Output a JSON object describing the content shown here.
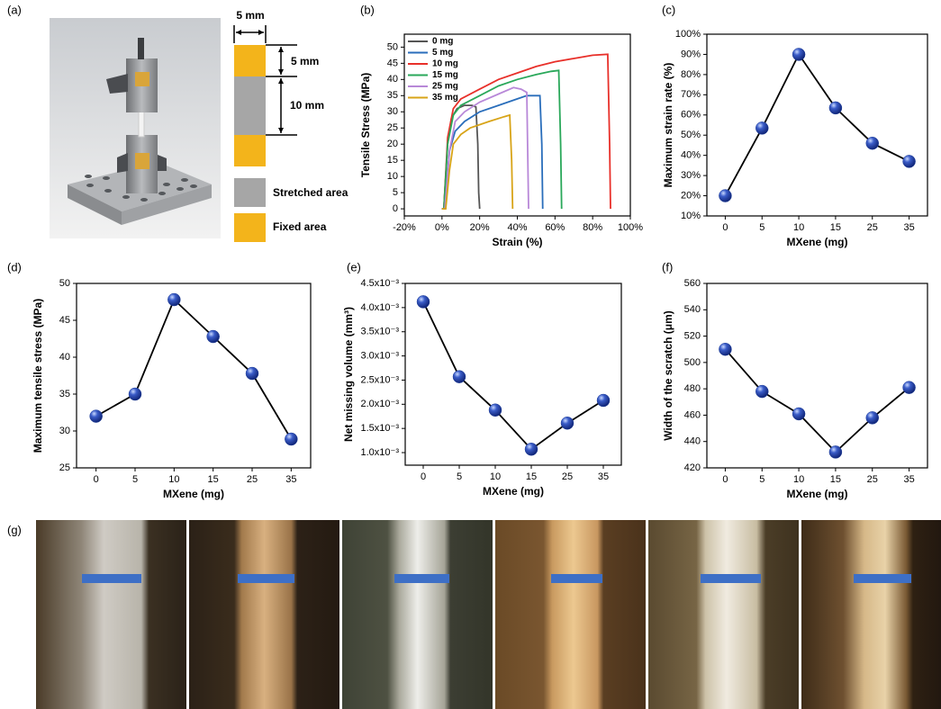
{
  "panel_a": {
    "label": "(a)",
    "top_width": "5 mm",
    "fixed_length": "5 mm",
    "stretched_length": "10 mm",
    "legend": [
      "Stretched area",
      "Fixed area"
    ]
  },
  "panel_g": {
    "label": "(g)"
  },
  "chart_data": [
    {
      "type": "line",
      "label": "(b)",
      "x_label": "Strain (%)",
      "y_label": "Tensile Stress (MPa)",
      "xlim": [
        -20,
        100
      ],
      "xticks": [
        {
          "value": -20,
          "label": "-20%"
        },
        {
          "value": 0,
          "label": "0%"
        },
        {
          "value": 20,
          "label": "20%"
        },
        {
          "value": 40,
          "label": "40%"
        },
        {
          "value": 60,
          "label": "60%"
        },
        {
          "value": 80,
          "label": "80%"
        },
        {
          "value": 100,
          "label": "100%"
        }
      ],
      "ylim": [
        -2.2,
        54
      ],
      "yticks": [
        0,
        5,
        10,
        15,
        20,
        25,
        30,
        35,
        40,
        45,
        50
      ],
      "legend": "upper left",
      "series": [
        {
          "name": "0 mg",
          "color": "#555555",
          "x": [
            0,
            1,
            3,
            5,
            8,
            12,
            16,
            18,
            19,
            19.5,
            20
          ],
          "values": [
            0,
            0,
            20,
            28,
            31,
            32,
            32,
            31.5,
            20,
            5,
            0
          ]
        },
        {
          "name": "5 mg",
          "color": "#2a6ebb",
          "x": [
            0,
            1.5,
            4,
            7,
            12,
            20,
            30,
            40,
            45,
            52,
            53,
            53.5
          ],
          "values": [
            0,
            0,
            18,
            24,
            27,
            30,
            32,
            34,
            35,
            35,
            20,
            0
          ]
        },
        {
          "name": "10 mg",
          "color": "#e8302a",
          "x": [
            0,
            1,
            3,
            6,
            10,
            20,
            30,
            40,
            50,
            60,
            70,
            80,
            88,
            89,
            89.5
          ],
          "values": [
            0,
            0,
            22,
            31,
            34,
            37,
            40,
            42,
            44,
            45.5,
            46.5,
            47.5,
            47.8,
            20,
            0
          ]
        },
        {
          "name": "15 mg",
          "color": "#2aa85a",
          "x": [
            0,
            1,
            3,
            6,
            10,
            20,
            30,
            40,
            50,
            58,
            62,
            63,
            63.5
          ],
          "values": [
            0,
            0,
            20,
            29,
            32,
            35,
            38,
            40,
            41.5,
            42.5,
            42.8,
            20,
            0
          ]
        },
        {
          "name": "25 mg",
          "color": "#b888d8",
          "x": [
            0,
            1.5,
            4,
            7,
            12,
            20,
            30,
            38,
            42,
            45,
            45.5,
            46
          ],
          "values": [
            0,
            0,
            18,
            27,
            30,
            33,
            35.5,
            37.5,
            37,
            36,
            18,
            0
          ]
        },
        {
          "name": "35 mg",
          "color": "#d8a418",
          "x": [
            0,
            2,
            4,
            6,
            10,
            15,
            25,
            33,
            36,
            37,
            37.5
          ],
          "values": [
            0,
            0,
            12,
            20,
            23,
            25,
            27,
            28.5,
            29,
            15,
            0
          ]
        }
      ]
    },
    {
      "type": "line",
      "label": "(c)",
      "x_label": "MXene (mg)",
      "y_label": "Maximum strain rate (%)",
      "categories": [
        "0",
        "5",
        "10",
        "15",
        "25",
        "35"
      ],
      "values": [
        20,
        53.5,
        90,
        63.5,
        46,
        37
      ],
      "ylim": [
        10,
        100
      ],
      "yticks": [
        {
          "value": 10,
          "label": "10%"
        },
        {
          "value": 20,
          "label": "20%"
        },
        {
          "value": 30,
          "label": "30%"
        },
        {
          "value": 40,
          "label": "40%"
        },
        {
          "value": 50,
          "label": "50%"
        },
        {
          "value": 60,
          "label": "60%"
        },
        {
          "value": 70,
          "label": "70%"
        },
        {
          "value": 80,
          "label": "80%"
        },
        {
          "value": 90,
          "label": "90%"
        },
        {
          "value": 100,
          "label": "100%"
        }
      ],
      "color": "#1f3f9a"
    },
    {
      "type": "line",
      "label": "(d)",
      "x_label": "MXene (mg)",
      "y_label": "Maximum tensile stress (MPa)",
      "categories": [
        "0",
        "5",
        "10",
        "15",
        "25",
        "35"
      ],
      "values": [
        32,
        35,
        47.8,
        42.8,
        37.8,
        28.9
      ],
      "ylim": [
        25,
        50
      ],
      "yticks": [
        25,
        30,
        35,
        40,
        45,
        50
      ],
      "color": "#1f3f9a"
    },
    {
      "type": "line",
      "label": "(e)",
      "x_label": "MXene (mg)",
      "y_label": "Net missing volume (mm³)",
      "categories": [
        "0",
        "5",
        "10",
        "15",
        "25",
        "35"
      ],
      "values": [
        0.00412,
        0.00257,
        0.00188,
        0.00107,
        0.00161,
        0.00208
      ],
      "ylim": [
        0.00074,
        0.0045
      ],
      "yticks": [
        {
          "value": 0.001,
          "label": "1.0x10⁻³"
        },
        {
          "value": 0.0015,
          "label": "1.5x10⁻³"
        },
        {
          "value": 0.002,
          "label": "2.0x10⁻³"
        },
        {
          "value": 0.0025,
          "label": "2.5x10⁻³"
        },
        {
          "value": 0.003,
          "label": "3.0x10⁻³"
        },
        {
          "value": 0.0035,
          "label": "3.5x10⁻³"
        },
        {
          "value": 0.004,
          "label": "4.0x10⁻³"
        },
        {
          "value": 0.0045,
          "label": "4.5x10⁻³"
        }
      ],
      "color": "#1f3f9a"
    },
    {
      "type": "line",
      "label": "(f)",
      "x_label": "MXene (mg)",
      "y_label": "Width of the scratch (μm)",
      "categories": [
        "0",
        "5",
        "10",
        "15",
        "25",
        "35"
      ],
      "values": [
        510,
        478,
        461,
        432,
        458,
        481
      ],
      "ylim": [
        420,
        560
      ],
      "yticks": [
        420,
        440,
        460,
        480,
        500,
        520,
        540,
        560
      ],
      "color": "#1f3f9a"
    }
  ]
}
